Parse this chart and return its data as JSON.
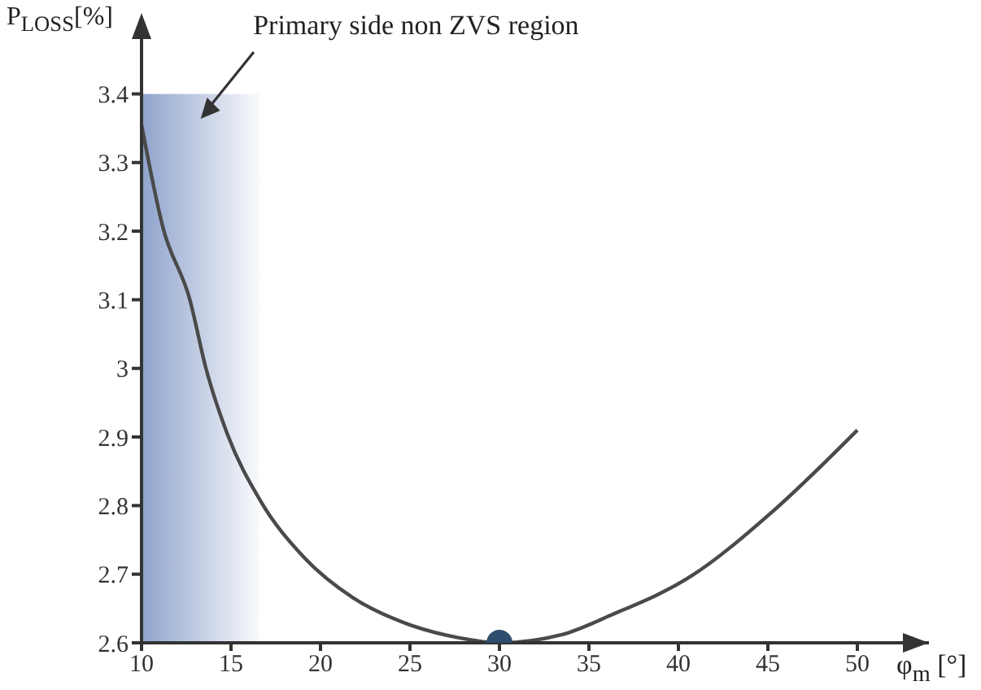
{
  "chart_data": {
    "type": "line",
    "xlabel": "φ$_{m}$ [°]",
    "ylabel": "P$_{LOSS}$[%]",
    "xlim": [
      10,
      54
    ],
    "ylim": [
      2.6,
      3.48
    ],
    "xticks": [
      10,
      15,
      20,
      25,
      30,
      35,
      40,
      45,
      50
    ],
    "yticks": [
      2.6,
      2.7,
      2.8,
      2.9,
      3,
      3.1,
      3.2,
      3.3,
      3.4
    ],
    "marker": "none",
    "line_style": "solid",
    "series": [
      {
        "color": "#4a4a4a",
        "x": [
          10,
          11.2,
          12.7,
          13.6,
          14.8,
          16.6,
          19.1,
          21.8,
          24.8,
          27.8,
          30,
          33.5,
          36.2,
          40.7,
          45.2,
          50
        ],
        "values": [
          3.355,
          3.205,
          3.1,
          3.0,
          2.904,
          2.809,
          2.724,
          2.666,
          2.628,
          2.607,
          2.6,
          2.612,
          2.64,
          2.697,
          2.79,
          2.91
        ]
      },
      {
        "type": "scatter",
        "marker": "circle",
        "color": "#2e4d6e",
        "x": [
          30
        ],
        "values": [
          2.6
        ]
      }
    ],
    "bands": [
      {
        "axis": "x",
        "from": 10,
        "to": 16.6,
        "color": "#8fa3cc",
        "label": "Primary side non ZVS region"
      }
    ]
  }
}
